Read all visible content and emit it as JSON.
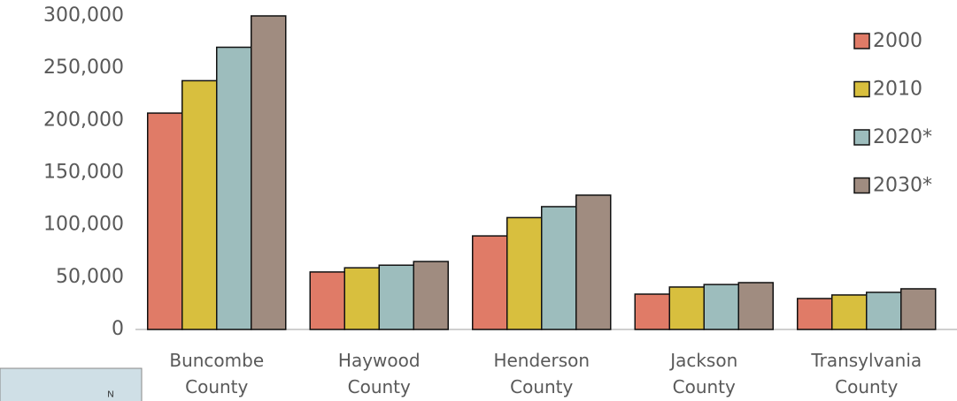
{
  "chart_data": {
    "type": "bar",
    "categories": [
      "Buncombe County",
      "Haywood County",
      "Henderson County",
      "Jackson County",
      "Transylvania County"
    ],
    "series": [
      {
        "name": "2000",
        "color": "#e07b67",
        "values": [
          207000,
          55000,
          89500,
          33800,
          29600
        ]
      },
      {
        "name": "2010",
        "color": "#d8bf3e",
        "values": [
          238000,
          59000,
          107000,
          40600,
          33000
        ]
      },
      {
        "name": "2020*",
        "color": "#9dbdbd",
        "values": [
          270000,
          61500,
          117500,
          43000,
          35500
        ]
      },
      {
        "name": "2030*",
        "color": "#a08c80",
        "values": [
          300000,
          65000,
          128500,
          44800,
          38900
        ]
      }
    ],
    "ylim": [
      0,
      300000
    ],
    "yticks": [
      0,
      {
        "value": 50000,
        "label": "50,000"
      },
      {
        "value": 100000,
        "label": "100,000"
      },
      {
        "value": 150000,
        "label": "150,000"
      },
      {
        "value": 200000,
        "label": "200,000"
      },
      {
        "value": 250000,
        "label": "250,000"
      },
      {
        "value": 300000,
        "label": "300,000"
      }
    ],
    "grid": false,
    "legend": "right"
  },
  "inset_map": {
    "north_label": "N"
  }
}
